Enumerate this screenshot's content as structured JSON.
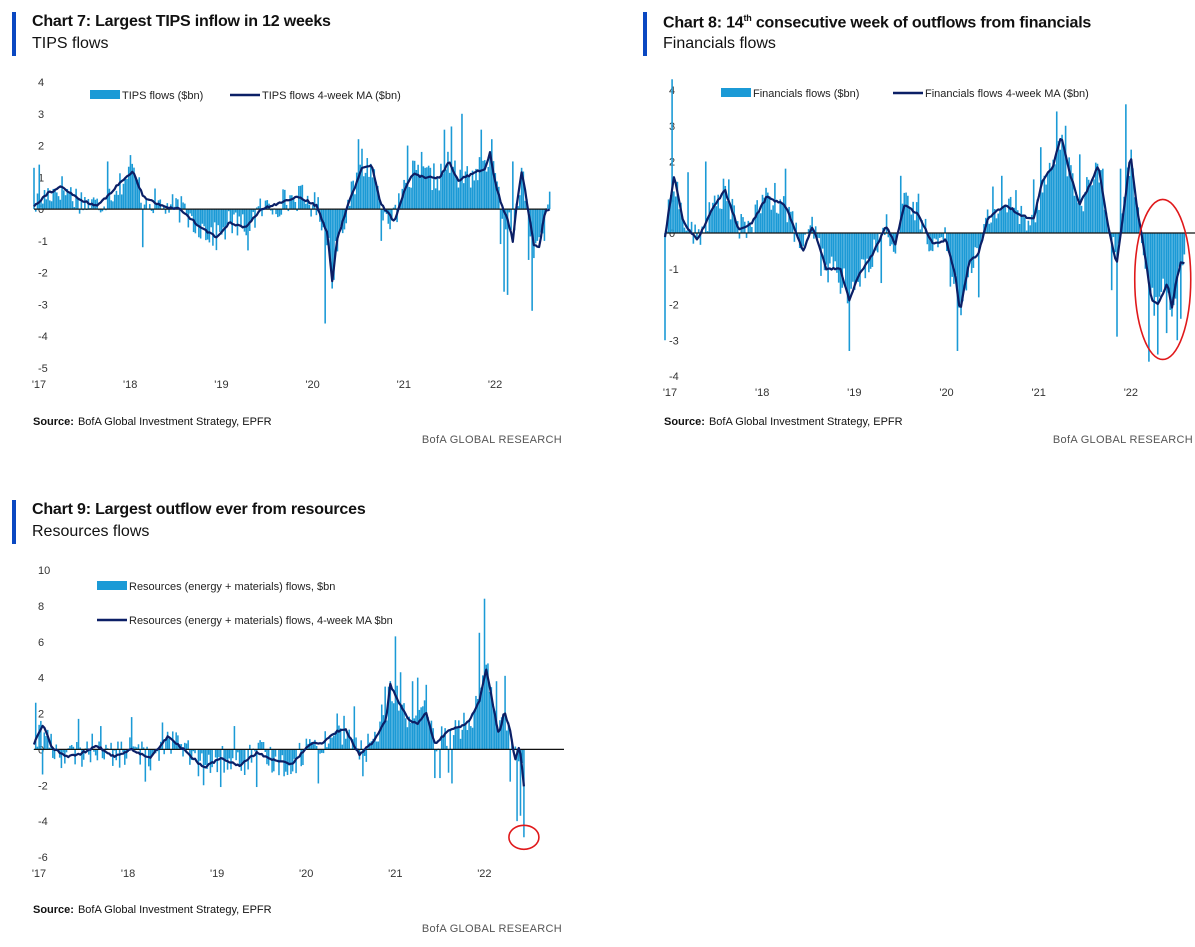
{
  "colors": {
    "bar": "#1b9ad6",
    "line": "#0b1f66",
    "accent": "#0a48c2",
    "highlight": "#e0191b"
  },
  "source_label": "Source:",
  "source_text": "BofA Global Investment Strategy, EPFR",
  "credit": "BofA GLOBAL RESEARCH",
  "chart_data": [
    {
      "type": "bar",
      "title": "Chart 7: Largest TIPS inflow in 12 weeks",
      "subtitle": "TIPS flows",
      "series": [
        {
          "name": "TIPS flows ($bn)",
          "kind": "bar"
        },
        {
          "name": "TIPS flows 4-week MA ($bn)",
          "kind": "line"
        }
      ],
      "ylim": [
        -5,
        4
      ],
      "yticks": [
        "4",
        "3",
        "2",
        "1",
        "0",
        "-1",
        "-2",
        "-3",
        "-4",
        "-5"
      ],
      "xlim": [
        2017.0,
        2022.8
      ],
      "xticks": [
        {
          "x": 2017,
          "label": "'17"
        },
        {
          "x": 2018,
          "label": "'18"
        },
        {
          "x": 2019,
          "label": "'19"
        },
        {
          "x": 2020,
          "label": "'20"
        },
        {
          "x": 2021,
          "label": "'21"
        },
        {
          "x": 2022,
          "label": "'22"
        }
      ],
      "ma_anchors": [
        [
          2017.0,
          0.1
        ],
        [
          2017.15,
          0.5
        ],
        [
          2017.3,
          0.7
        ],
        [
          2017.5,
          0.3
        ],
        [
          2017.7,
          0.1
        ],
        [
          2017.9,
          0.7
        ],
        [
          2018.08,
          1.2
        ],
        [
          2018.2,
          0.4
        ],
        [
          2018.4,
          0.1
        ],
        [
          2018.6,
          0.0
        ],
        [
          2018.8,
          -0.5
        ],
        [
          2019.0,
          -0.9
        ],
        [
          2019.15,
          -0.4
        ],
        [
          2019.3,
          -0.6
        ],
        [
          2019.5,
          0.0
        ],
        [
          2019.7,
          0.2
        ],
        [
          2019.9,
          0.4
        ],
        [
          2020.1,
          0.1
        ],
        [
          2020.22,
          -0.8
        ],
        [
          2020.27,
          -2.3
        ],
        [
          2020.32,
          -1.0
        ],
        [
          2020.45,
          0.2
        ],
        [
          2020.6,
          1.3
        ],
        [
          2020.7,
          1.4
        ],
        [
          2020.8,
          0.2
        ],
        [
          2020.95,
          -0.4
        ],
        [
          2021.05,
          0.5
        ],
        [
          2021.15,
          1.1
        ],
        [
          2021.3,
          1.0
        ],
        [
          2021.45,
          1.0
        ],
        [
          2021.55,
          1.5
        ],
        [
          2021.65,
          0.9
        ],
        [
          2021.8,
          1.1
        ],
        [
          2021.95,
          1.3
        ],
        [
          2022.0,
          1.8
        ],
        [
          2022.05,
          0.9
        ],
        [
          2022.12,
          0.2
        ],
        [
          2022.2,
          -0.4
        ],
        [
          2022.25,
          -1.0
        ],
        [
          2022.3,
          0.3
        ],
        [
          2022.35,
          1.2
        ],
        [
          2022.4,
          0.3
        ],
        [
          2022.48,
          -1.1
        ],
        [
          2022.54,
          -1.2
        ],
        [
          2022.6,
          -0.1
        ],
        [
          2022.65,
          0.0
        ]
      ],
      "spikes": [
        [
          2017.0,
          1.3
        ],
        [
          2017.05,
          1.4
        ],
        [
          2017.8,
          1.5
        ],
        [
          2018.05,
          1.7
        ],
        [
          2018.2,
          -1.2
        ],
        [
          2019.05,
          -0.8
        ],
        [
          2019.35,
          -1.3
        ],
        [
          2020.2,
          -3.6
        ],
        [
          2020.27,
          -2.5
        ],
        [
          2020.55,
          2.2
        ],
        [
          2020.6,
          1.9
        ],
        [
          2020.8,
          -1.0
        ],
        [
          2021.1,
          2.0
        ],
        [
          2021.25,
          1.8
        ],
        [
          2021.35,
          1.3
        ],
        [
          2021.5,
          2.5
        ],
        [
          2021.58,
          2.6
        ],
        [
          2021.7,
          3.0
        ],
        [
          2021.9,
          2.5
        ],
        [
          2022.02,
          2.2
        ],
        [
          2022.12,
          -1.1
        ],
        [
          2022.15,
          -2.6
        ],
        [
          2022.2,
          -2.7
        ],
        [
          2022.25,
          1.5
        ],
        [
          2022.35,
          1.3
        ],
        [
          2022.42,
          -1.6
        ],
        [
          2022.47,
          -3.2
        ],
        [
          2022.52,
          -1.0
        ],
        [
          2022.6,
          -1.0
        ],
        [
          2022.65,
          0.6
        ]
      ],
      "last_bar": {
        "x": 2022.66,
        "value": 0.55
      }
    },
    {
      "type": "bar",
      "title": "Chart 8: 14th consecutive week of outflows from financials",
      "title_main_prefix": "Chart 8: 14",
      "title_sup": "th",
      "title_main_suffix": " consecutive week of outflows from financials",
      "subtitle": "Financials flows",
      "series": [
        {
          "name": "Financials flows ($bn)",
          "kind": "bar"
        },
        {
          "name": "Financials flows 4-week MA ($bn)",
          "kind": "line"
        }
      ],
      "ylim": [
        -4,
        4
      ],
      "yticks": [
        "4",
        "3",
        "2",
        "1",
        "0",
        "-1",
        "-2",
        "-3",
        "-4"
      ],
      "xlim": [
        2017.0,
        2022.75
      ],
      "xticks": [
        {
          "x": 2017,
          "label": "'17"
        },
        {
          "x": 2018,
          "label": "'18"
        },
        {
          "x": 2019,
          "label": "'19"
        },
        {
          "x": 2020,
          "label": "'20"
        },
        {
          "x": 2021,
          "label": "'21"
        },
        {
          "x": 2022,
          "label": "'22"
        }
      ],
      "ma_anchors": [
        [
          2017.0,
          -0.1
        ],
        [
          2017.1,
          1.6
        ],
        [
          2017.2,
          0.3
        ],
        [
          2017.35,
          -0.2
        ],
        [
          2017.5,
          0.6
        ],
        [
          2017.65,
          1.2
        ],
        [
          2017.8,
          0.1
        ],
        [
          2017.95,
          0.3
        ],
        [
          2018.1,
          1.0
        ],
        [
          2018.3,
          0.8
        ],
        [
          2018.5,
          -0.5
        ],
        [
          2018.6,
          0.2
        ],
        [
          2018.75,
          -1.0
        ],
        [
          2018.9,
          -1.0
        ],
        [
          2019.0,
          -1.9
        ],
        [
          2019.1,
          -1.2
        ],
        [
          2019.25,
          -0.6
        ],
        [
          2019.4,
          0.2
        ],
        [
          2019.5,
          -0.3
        ],
        [
          2019.6,
          0.8
        ],
        [
          2019.75,
          0.5
        ],
        [
          2019.9,
          -0.3
        ],
        [
          2020.05,
          -0.2
        ],
        [
          2020.15,
          -1.2
        ],
        [
          2020.2,
          -2.2
        ],
        [
          2020.3,
          -0.8
        ],
        [
          2020.4,
          -0.6
        ],
        [
          2020.5,
          0.4
        ],
        [
          2020.6,
          0.6
        ],
        [
          2020.7,
          0.8
        ],
        [
          2020.85,
          0.5
        ],
        [
          2021.0,
          0.4
        ],
        [
          2021.1,
          1.5
        ],
        [
          2021.2,
          1.8
        ],
        [
          2021.3,
          2.7
        ],
        [
          2021.4,
          1.6
        ],
        [
          2021.5,
          0.8
        ],
        [
          2021.6,
          1.3
        ],
        [
          2021.7,
          1.9
        ],
        [
          2021.8,
          0.3
        ],
        [
          2021.9,
          -0.9
        ],
        [
          2022.0,
          1.1
        ],
        [
          2022.05,
          2.2
        ],
        [
          2022.12,
          0.7
        ],
        [
          2022.2,
          -0.5
        ],
        [
          2022.28,
          -1.9
        ],
        [
          2022.35,
          -2.0
        ],
        [
          2022.45,
          -1.4
        ],
        [
          2022.5,
          -2.1
        ],
        [
          2022.55,
          -1.3
        ],
        [
          2022.6,
          -0.8
        ],
        [
          2022.65,
          -0.9
        ]
      ],
      "spikes": [
        [
          2017.0,
          -3.0
        ],
        [
          2017.08,
          4.3
        ],
        [
          2017.25,
          1.7
        ],
        [
          2017.45,
          2.0
        ],
        [
          2017.7,
          1.5
        ],
        [
          2018.2,
          1.4
        ],
        [
          2018.3,
          1.8
        ],
        [
          2018.7,
          -1.2
        ],
        [
          2018.9,
          -1.7
        ],
        [
          2019.0,
          -3.3
        ],
        [
          2019.12,
          -1.5
        ],
        [
          2019.35,
          -1.4
        ],
        [
          2019.55,
          1.6
        ],
        [
          2019.75,
          1.1
        ],
        [
          2020.1,
          -1.5
        ],
        [
          2020.18,
          -3.3
        ],
        [
          2020.22,
          -2.3
        ],
        [
          2020.4,
          -1.8
        ],
        [
          2020.55,
          1.3
        ],
        [
          2020.65,
          1.6
        ],
        [
          2020.8,
          1.2
        ],
        [
          2021.0,
          1.5
        ],
        [
          2021.08,
          2.4
        ],
        [
          2021.25,
          3.4
        ],
        [
          2021.35,
          3.0
        ],
        [
          2021.5,
          2.2
        ],
        [
          2021.65,
          1.5
        ],
        [
          2021.75,
          1.8
        ],
        [
          2021.85,
          -1.6
        ],
        [
          2021.9,
          -2.9
        ],
        [
          2021.95,
          1.8
        ],
        [
          2022.0,
          3.6
        ],
        [
          2022.1,
          1.0
        ],
        [
          2022.25,
          -3.6
        ],
        [
          2022.35,
          -3.4
        ],
        [
          2022.45,
          -2.8
        ],
        [
          2022.55,
          -3.0
        ],
        [
          2022.6,
          -2.4
        ]
      ],
      "last_bar": {
        "x": 2022.64,
        "value": -0.6
      }
    },
    {
      "type": "bar",
      "title": "Chart 9: Largest outflow ever from resources",
      "subtitle": "Resources flows",
      "series": [
        {
          "name": "Resources (energy + materials) flows, $bn",
          "kind": "bar"
        },
        {
          "name": "Resources (energy + materials) flows, 4-week MA $bn",
          "kind": "line"
        }
      ],
      "ylim": [
        -6,
        10
      ],
      "yticks": [
        "10",
        "8",
        "6",
        "4",
        "2",
        "0",
        "-2",
        "-4",
        "-6"
      ],
      "xlim": [
        2017.0,
        2022.95
      ],
      "xticks": [
        {
          "x": 2017,
          "label": "'17"
        },
        {
          "x": 2018,
          "label": "'18"
        },
        {
          "x": 2019,
          "label": "'19"
        },
        {
          "x": 2020,
          "label": "'20"
        },
        {
          "x": 2021,
          "label": "'21"
        },
        {
          "x": 2022,
          "label": "'22"
        }
      ],
      "ma_anchors": [
        [
          2017.0,
          0.3
        ],
        [
          2017.1,
          1.4
        ],
        [
          2017.2,
          0.1
        ],
        [
          2017.35,
          -0.4
        ],
        [
          2017.5,
          -0.3
        ],
        [
          2017.7,
          0.2
        ],
        [
          2017.9,
          -0.4
        ],
        [
          2018.1,
          0.0
        ],
        [
          2018.3,
          -0.5
        ],
        [
          2018.5,
          0.7
        ],
        [
          2018.7,
          -0.1
        ],
        [
          2018.9,
          -1.0
        ],
        [
          2019.1,
          -0.5
        ],
        [
          2019.3,
          -0.9
        ],
        [
          2019.5,
          -0.2
        ],
        [
          2019.7,
          -0.6
        ],
        [
          2019.9,
          -0.8
        ],
        [
          2020.1,
          0.3
        ],
        [
          2020.25,
          0.4
        ],
        [
          2020.4,
          1.0
        ],
        [
          2020.5,
          1.1
        ],
        [
          2020.65,
          -0.3
        ],
        [
          2020.8,
          0.4
        ],
        [
          2020.95,
          1.6
        ],
        [
          2021.0,
          3.6
        ],
        [
          2021.1,
          2.6
        ],
        [
          2021.2,
          1.7
        ],
        [
          2021.3,
          1.4
        ],
        [
          2021.4,
          2.1
        ],
        [
          2021.5,
          0.3
        ],
        [
          2021.65,
          1.0
        ],
        [
          2021.8,
          1.3
        ],
        [
          2021.9,
          1.7
        ],
        [
          2022.0,
          2.7
        ],
        [
          2022.08,
          4.5
        ],
        [
          2022.15,
          2.5
        ],
        [
          2022.22,
          0.8
        ],
        [
          2022.28,
          2.1
        ],
        [
          2022.35,
          1.0
        ],
        [
          2022.4,
          -0.6
        ],
        [
          2022.45,
          0.2
        ],
        [
          2022.5,
          -2.0
        ]
      ],
      "spikes": [
        [
          2017.02,
          2.6
        ],
        [
          2017.1,
          -1.4
        ],
        [
          2017.5,
          1.7
        ],
        [
          2017.75,
          1.3
        ],
        [
          2018.1,
          1.8
        ],
        [
          2018.25,
          -1.8
        ],
        [
          2018.45,
          1.5
        ],
        [
          2018.55,
          1.0
        ],
        [
          2018.9,
          -2.0
        ],
        [
          2019.1,
          -2.1
        ],
        [
          2019.25,
          1.3
        ],
        [
          2019.5,
          -2.1
        ],
        [
          2019.8,
          -1.5
        ],
        [
          2020.2,
          -1.9
        ],
        [
          2020.4,
          2.0
        ],
        [
          2020.6,
          2.4
        ],
        [
          2020.7,
          -1.5
        ],
        [
          2020.9,
          2.5
        ],
        [
          2020.95,
          3.5
        ],
        [
          2021.05,
          6.3
        ],
        [
          2021.12,
          4.3
        ],
        [
          2021.25,
          3.8
        ],
        [
          2021.3,
          4.0
        ],
        [
          2021.4,
          3.6
        ],
        [
          2021.5,
          -1.6
        ],
        [
          2021.55,
          -1.6
        ],
        [
          2021.65,
          -1.3
        ],
        [
          2021.7,
          -1.9
        ],
        [
          2021.95,
          2.2
        ],
        [
          2022.0,
          6.5
        ],
        [
          2022.05,
          8.4
        ],
        [
          2022.12,
          3.2
        ],
        [
          2022.2,
          3.8
        ],
        [
          2022.28,
          4.1
        ],
        [
          2022.35,
          -1.8
        ],
        [
          2022.42,
          -4.0
        ],
        [
          2022.47,
          -3.7
        ]
      ],
      "last_bar": {
        "x": 2022.5,
        "value": -4.9
      }
    }
  ]
}
